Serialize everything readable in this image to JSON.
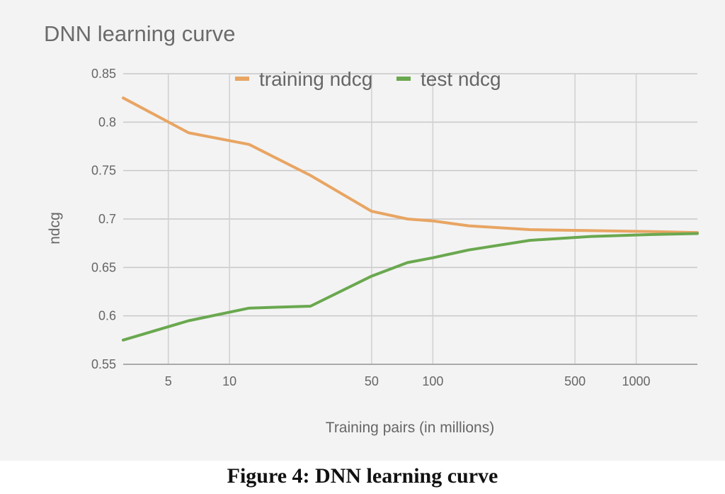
{
  "chart_data": {
    "type": "line",
    "title": "DNN learning curve",
    "xlabel": "Training pairs (in millions)",
    "ylabel": "ndcg",
    "x_scale": "log",
    "xlim": [
      3.0,
      2000
    ],
    "ylim": [
      0.55,
      0.85
    ],
    "x_ticks": [
      5,
      10,
      50,
      100,
      500,
      1000
    ],
    "y_ticks": [
      0.55,
      0.6,
      0.65,
      0.7,
      0.75,
      0.8,
      0.85
    ],
    "y_tick_labels": [
      "0.55",
      "0.6",
      "0.65",
      "0.7",
      "0.75",
      "0.8",
      "0.85"
    ],
    "grid": true,
    "legend_position": "top",
    "series": [
      {
        "name": "training ndcg",
        "color": "#e8a563",
        "x": [
          3.0,
          6.3,
          12.5,
          25,
          50,
          75,
          100,
          150,
          300,
          600,
          1200,
          2000
        ],
        "y": [
          0.825,
          0.789,
          0.777,
          0.745,
          0.708,
          0.7,
          0.698,
          0.693,
          0.689,
          0.688,
          0.687,
          0.686
        ]
      },
      {
        "name": "test ndcg",
        "color": "#6aa84f",
        "x": [
          3.0,
          6.3,
          12.5,
          25,
          50,
          75,
          100,
          150,
          300,
          600,
          1200,
          2000
        ],
        "y": [
          0.575,
          0.595,
          0.608,
          0.61,
          0.641,
          0.655,
          0.66,
          0.668,
          0.678,
          0.682,
          0.684,
          0.685
        ]
      }
    ]
  },
  "figure": {
    "caption": "Figure 4: DNN learning curve"
  }
}
